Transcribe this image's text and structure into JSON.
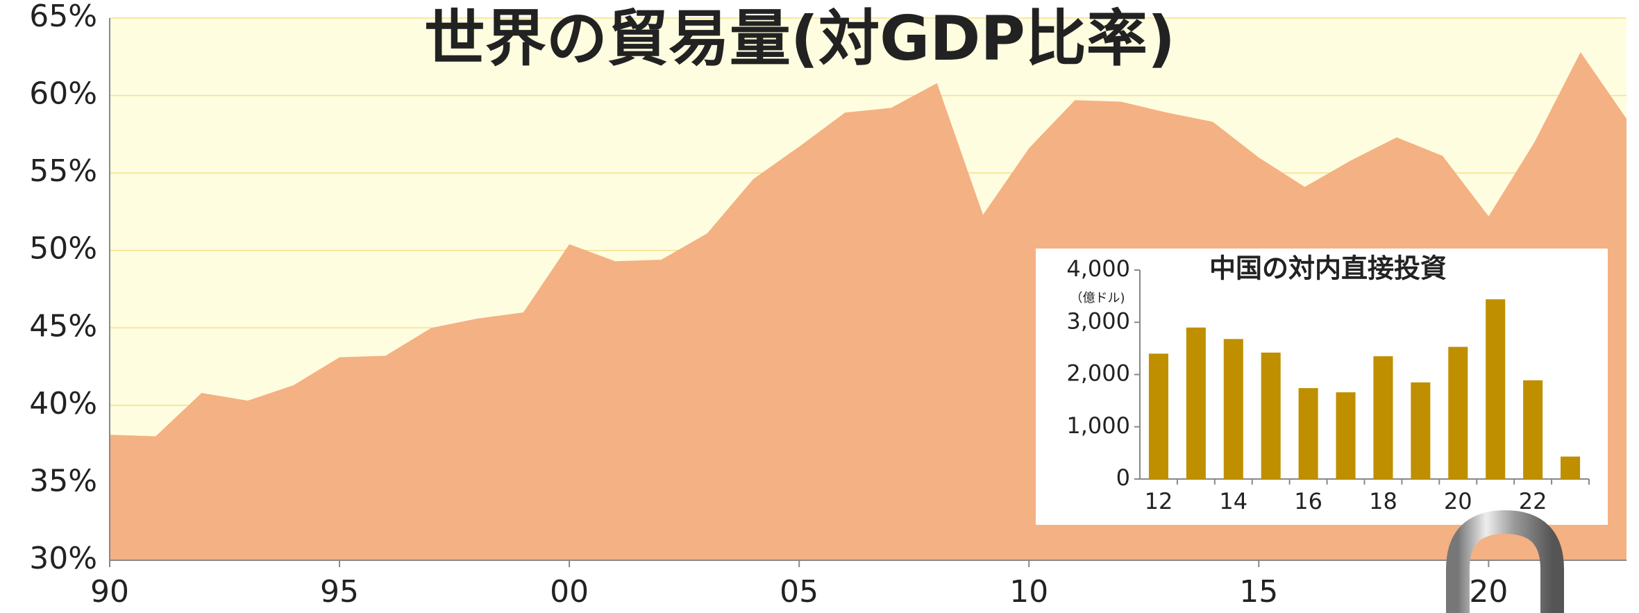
{
  "chart_data": [
    {
      "type": "area",
      "title": "世界の貿易量(対GDP比率)",
      "x": [
        1990,
        1991,
        1992,
        1993,
        1994,
        1995,
        1996,
        1997,
        1998,
        1999,
        2000,
        2001,
        2002,
        2003,
        2004,
        2005,
        2006,
        2007,
        2008,
        2009,
        2010,
        2011,
        2012,
        2013,
        2014,
        2015,
        2016,
        2017,
        2018,
        2019,
        2020,
        2021,
        2022,
        2023
      ],
      "values": [
        38.1,
        38.0,
        40.8,
        40.3,
        41.3,
        43.1,
        43.2,
        45.0,
        45.6,
        46.0,
        50.4,
        49.3,
        49.4,
        51.1,
        54.6,
        56.7,
        58.9,
        59.2,
        60.8,
        52.3,
        56.6,
        59.7,
        59.6,
        58.9,
        58.3,
        56.0,
        54.1,
        55.8,
        57.3,
        56.1,
        52.2,
        57.0,
        62.8,
        58.5
      ],
      "color": "#f4b183",
      "xlim": [
        1990,
        2023
      ],
      "xticks": [
        {
          "value": 1990,
          "label": "90"
        },
        {
          "value": 1995,
          "label": "95"
        },
        {
          "value": 2000,
          "label": "00"
        },
        {
          "value": 2005,
          "label": "05"
        },
        {
          "value": 2010,
          "label": "10"
        },
        {
          "value": 2015,
          "label": "15"
        },
        {
          "value": 2020,
          "label": "20"
        }
      ],
      "ylim": [
        30,
        65
      ],
      "yticks": [
        {
          "value": 30,
          "label": "30%"
        },
        {
          "value": 35,
          "label": "35%"
        },
        {
          "value": 40,
          "label": "40%"
        },
        {
          "value": 45,
          "label": "45%"
        },
        {
          "value": 50,
          "label": "50%"
        },
        {
          "value": 55,
          "label": "55%"
        },
        {
          "value": 60,
          "label": "60%"
        },
        {
          "value": 65,
          "label": "65%"
        }
      ],
      "grid": true
    },
    {
      "type": "bar",
      "title": "中国の対内直接投資",
      "unit_label": "（億ドル)",
      "categories": [
        "12",
        null,
        "14",
        null,
        "16",
        null,
        "18",
        null,
        "20",
        null,
        "22",
        null
      ],
      "values": [
        2400,
        2900,
        2680,
        2420,
        1740,
        1660,
        2350,
        1850,
        2530,
        3440,
        1890,
        430
      ],
      "color": "#bf8f00",
      "ylim": [
        0,
        4000
      ],
      "yticks": [
        {
          "value": 0,
          "label": "0"
        },
        {
          "value": 1000,
          "label": "1,000"
        },
        {
          "value": 2000,
          "label": "2,000"
        },
        {
          "value": 3000,
          "label": "3,000"
        },
        {
          "value": 4000,
          "label": "4,000"
        }
      ],
      "grid": false
    }
  ]
}
